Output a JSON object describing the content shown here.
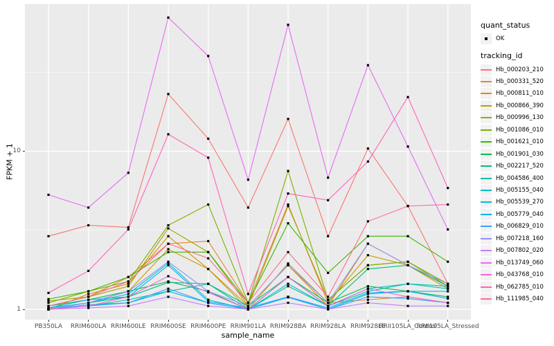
{
  "figure": {
    "panel_bg": "#EBEBEB",
    "grid_color": "#FFFFFF",
    "background": "#FFFFFF",
    "point_color": "#000000"
  },
  "legend": {
    "quant_title": "quant_status",
    "quant_items": [
      {
        "label": "OK",
        "marker": "black-point"
      }
    ],
    "tracking_title": "tracking_id"
  },
  "chart_data": {
    "type": "line",
    "title": "",
    "xlabel": "sample_name",
    "ylabel": "FPKM + 1",
    "y_scale": "log10",
    "ylim": [
      1,
      85
    ],
    "grid": true,
    "legend_position": "right",
    "point_marker": "small-black-square",
    "y_ticks": [
      {
        "label": "1",
        "value": 1
      },
      {
        "label": "10",
        "value": 10
      }
    ],
    "y_minor_gridlines": [
      3.162,
      31.62
    ],
    "categories": [
      "PB350LA",
      "RRIM600LA",
      "RRIM600LE",
      "RRIM600SE",
      "RRIM600PE",
      "RRIM901LA",
      "RRIM928BA",
      "RRIM928LA",
      "RRIM928LE",
      "RRII105LA_Control",
      "RRII105LA_Stressed"
    ],
    "series": [
      {
        "name": "Hb_000203_210",
        "color": "#F8766D",
        "values": [
          2.9,
          3.4,
          3.3,
          23,
          12,
          4.4,
          16,
          2.9,
          10.4,
          4.5,
          1.45
        ]
      },
      {
        "name": "Hb_000331_520",
        "color": "#EA8331",
        "values": [
          1.05,
          1.2,
          1.6,
          2.6,
          2.7,
          1.1,
          4.6,
          1.1,
          1.15,
          1.2,
          1.1
        ]
      },
      {
        "name": "Hb_000811_010",
        "color": "#D89000",
        "values": [
          1.0,
          1.25,
          1.45,
          2.9,
          1.8,
          1.05,
          1.9,
          1.05,
          2.6,
          1.9,
          1.4
        ]
      },
      {
        "name": "Hb_000866_390",
        "color": "#C09B00",
        "values": [
          1.0,
          1.1,
          1.3,
          2.4,
          1.8,
          1.0,
          1.95,
          1.1,
          2.2,
          1.9,
          1.35
        ]
      },
      {
        "name": "Hb_000996_130",
        "color": "#A3A500",
        "values": [
          1.13,
          1.2,
          1.4,
          3.25,
          2.3,
          1.05,
          4.5,
          1.15,
          1.9,
          2.0,
          1.4
        ]
      },
      {
        "name": "Hb_001086_010",
        "color": "#7CAE00",
        "values": [
          1.1,
          1.3,
          1.5,
          3.4,
          4.6,
          1.1,
          7.5,
          1.15,
          1.9,
          2.0,
          1.45
        ]
      },
      {
        "name": "Hb_001621_010",
        "color": "#39B600",
        "values": [
          1.16,
          1.3,
          1.6,
          2.3,
          2.3,
          1.1,
          3.5,
          1.7,
          2.9,
          2.9,
          2.0
        ]
      },
      {
        "name": "Hb_001901_030",
        "color": "#00BB4E",
        "values": [
          1.05,
          1.15,
          1.3,
          1.5,
          1.3,
          1.0,
          1.6,
          1.1,
          1.4,
          1.3,
          1.2
        ]
      },
      {
        "name": "Hb_002217_520",
        "color": "#00BF7D",
        "values": [
          1.0,
          1.1,
          1.2,
          1.48,
          1.45,
          1.05,
          1.6,
          1.05,
          1.8,
          1.9,
          1.4
        ]
      },
      {
        "name": "Hb_004586_400",
        "color": "#00C1A3",
        "values": [
          1.0,
          1.05,
          1.15,
          1.3,
          1.45,
          1.0,
          1.4,
          1.05,
          1.3,
          1.45,
          1.35
        ]
      },
      {
        "name": "Hb_005155_040",
        "color": "#00BFC4",
        "values": [
          1.02,
          1.1,
          1.25,
          1.96,
          1.15,
          1.0,
          1.45,
          1.05,
          1.35,
          1.45,
          1.4
        ]
      },
      {
        "name": "Hb_005539_270",
        "color": "#00BAE0",
        "values": [
          1.0,
          1.05,
          1.1,
          1.3,
          1.1,
          1.0,
          1.2,
          1.0,
          1.25,
          1.3,
          1.3
        ]
      },
      {
        "name": "Hb_005779_040",
        "color": "#00B0F6",
        "values": [
          1.02,
          1.15,
          1.2,
          1.9,
          1.12,
          1.02,
          1.2,
          1.02,
          1.27,
          1.3,
          1.17
        ]
      },
      {
        "name": "Hb_006829_010",
        "color": "#35A2FF",
        "values": [
          1.0,
          1.07,
          1.1,
          1.35,
          1.1,
          1.0,
          1.19,
          1.0,
          1.2,
          1.17,
          1.1
        ]
      },
      {
        "name": "Hb_007218_160",
        "color": "#9590FF",
        "values": [
          1.0,
          1.1,
          1.3,
          2.0,
          1.3,
          1.05,
          1.9,
          1.1,
          2.6,
          1.9,
          1.45
        ]
      },
      {
        "name": "Hb_007802_020",
        "color": "#C77CFF",
        "values": [
          1.0,
          1.02,
          1.05,
          1.2,
          1.05,
          1.0,
          1.1,
          1.0,
          1.1,
          1.05,
          1.05
        ]
      },
      {
        "name": "Hb_013749_060",
        "color": "#E76BF3",
        "values": [
          5.3,
          4.4,
          7.3,
          70,
          40,
          6.6,
          63,
          6.8,
          35,
          10.7,
          3.2
        ]
      },
      {
        "name": "Hb_043768_010",
        "color": "#FA62DB",
        "values": [
          1.0,
          1.05,
          1.2,
          1.62,
          1.28,
          1.0,
          1.6,
          1.05,
          1.35,
          1.2,
          1.1
        ]
      },
      {
        "name": "Hb_062785_010",
        "color": "#FF62BC",
        "values": [
          1.27,
          1.75,
          3.2,
          12.8,
          9.1,
          1.25,
          5.4,
          4.9,
          8.6,
          22,
          5.85
        ]
      },
      {
        "name": "Hb_111985_040",
        "color": "#FF6A98",
        "values": [
          1.05,
          1.2,
          1.5,
          2.6,
          2.1,
          1.1,
          2.3,
          1.2,
          3.6,
          4.5,
          4.6
        ]
      }
    ]
  }
}
